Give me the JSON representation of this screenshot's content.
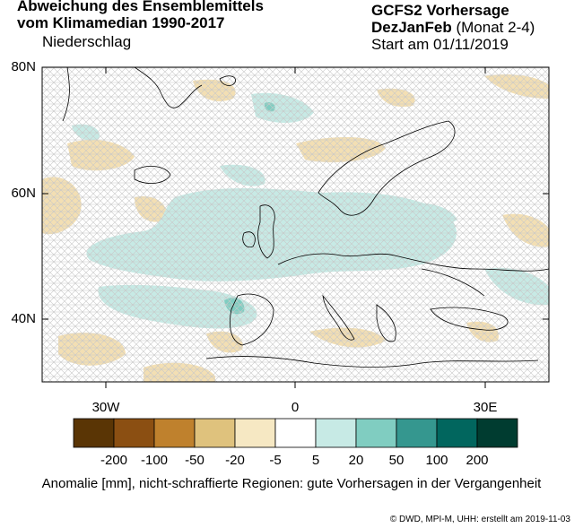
{
  "header": {
    "title_line1": "Abweichung des Ensemblemittels",
    "title_line2": "vom Klimamedian 1990-2017",
    "variable": "Niederschlag",
    "model": "GCFS2 Vorhersage",
    "season": "DezJanFeb",
    "season_detail": "(Monat 2-4)",
    "start": "Start am 01/11/2019"
  },
  "map": {
    "lat_labels": [
      "80N",
      "60N",
      "40N"
    ],
    "lon_labels": [
      "30W",
      "0",
      "30E"
    ],
    "hatch_color": "#c8c8c8",
    "land_outline_color": "#000000"
  },
  "colorbar": {
    "colors": [
      "#5a3505",
      "#8b4f12",
      "#bf812d",
      "#dfc27d",
      "#f6e8c3",
      "#ffffff",
      "#c7eae5",
      "#80cdc1",
      "#35978f",
      "#01665e",
      "#003c30"
    ],
    "labels": [
      "-200",
      "-100",
      "-50",
      "-20",
      "-5",
      "5",
      "20",
      "50",
      "100",
      "200"
    ]
  },
  "caption": "Anomalie [mm], nicht-schraffierte Regionen: gute Vorhersagen in der Vergangenheit",
  "credit": "© DWD, MPI-M, UHH: erstellt am 2019-11-03"
}
